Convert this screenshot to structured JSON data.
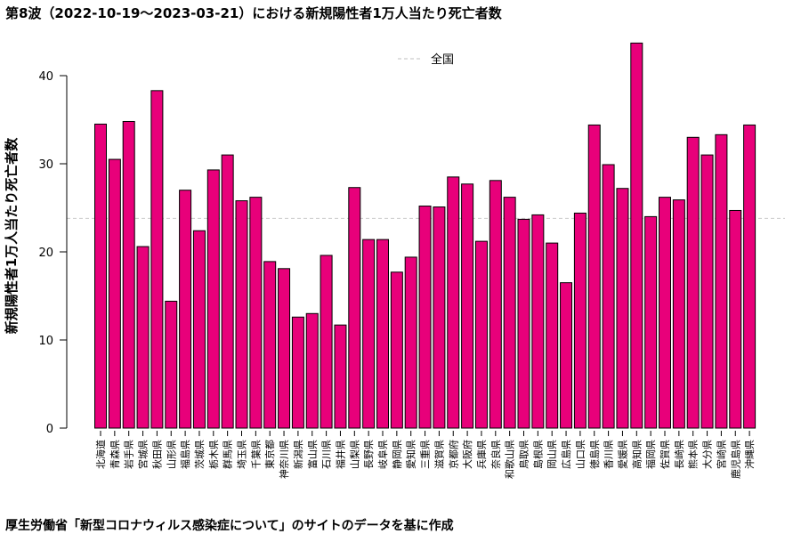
{
  "chart_data": {
    "type": "bar",
    "title": "第8波（2022-10-19～2023-03-21）における新規陽性者1万人当たり死亡者数",
    "xlabel": "",
    "ylabel": "新規陽性者1万人当たり死亡者数",
    "ylim": [
      0,
      44
    ],
    "yticks": [
      0,
      10,
      20,
      30,
      40
    ],
    "grid": false,
    "legend_position": "top-center",
    "reference_line": {
      "name": "全国",
      "value": 23.8,
      "color": "#cccccc",
      "style": "dashed"
    },
    "bar_color": "#e8007a",
    "categories": [
      "北海道",
      "青森県",
      "岩手県",
      "宮城県",
      "秋田県",
      "山形県",
      "福島県",
      "茨城県",
      "栃木県",
      "群馬県",
      "埼玉県",
      "千葉県",
      "東京都",
      "神奈川県",
      "新潟県",
      "富山県",
      "石川県",
      "福井県",
      "山梨県",
      "長野県",
      "岐阜県",
      "静岡県",
      "愛知県",
      "三重県",
      "滋賀県",
      "京都府",
      "大阪府",
      "兵庫県",
      "奈良県",
      "和歌山県",
      "鳥取県",
      "島根県",
      "岡山県",
      "広島県",
      "山口県",
      "徳島県",
      "香川県",
      "愛媛県",
      "高知県",
      "福岡県",
      "佐賀県",
      "長崎県",
      "熊本県",
      "大分県",
      "宮崎県",
      "鹿児島県",
      "沖縄県"
    ],
    "values": [
      34.5,
      30.5,
      34.8,
      20.6,
      38.3,
      14.4,
      27.0,
      22.4,
      29.3,
      31.0,
      25.8,
      26.2,
      18.9,
      18.1,
      12.6,
      13.0,
      19.6,
      11.7,
      27.3,
      21.4,
      21.4,
      17.7,
      19.4,
      25.2,
      25.1,
      28.5,
      27.7,
      21.2,
      28.1,
      26.2,
      23.7,
      24.2,
      21.0,
      16.5,
      24.4,
      34.4,
      29.9,
      27.2,
      43.7,
      24.0,
      26.2,
      25.9,
      33.0,
      31.0,
      33.3,
      24.7,
      34.4
    ]
  },
  "footer": {
    "note": "厚生労働省「新型コロナウィルス感染症について」のサイトのデータを基に作成"
  }
}
